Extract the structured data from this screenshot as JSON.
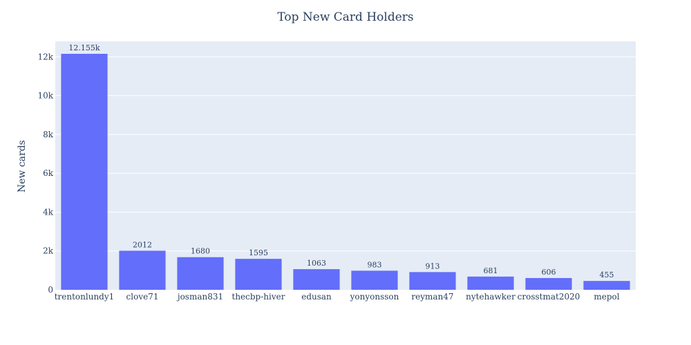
{
  "chart_data": {
    "type": "bar",
    "title": "Top New Card Holders",
    "xlabel": "",
    "ylabel": "New cards",
    "categories": [
      "trentonlundy1",
      "clove71",
      "josman831",
      "thecbp-hiver",
      "edusan",
      "yonyonsson",
      "reyman47",
      "nytehawker",
      "crosstmat2020",
      "mepol"
    ],
    "values": [
      12155,
      2012,
      1680,
      1595,
      1063,
      983,
      913,
      681,
      606,
      455
    ],
    "data_labels": [
      "12.155k",
      "2012",
      "1680",
      "1595",
      "1063",
      "983",
      "913",
      "681",
      "606",
      "455"
    ],
    "ylim": [
      0,
      12795
    ],
    "yticks": [
      0,
      2000,
      4000,
      6000,
      8000,
      10000,
      12000
    ],
    "ytick_labels": [
      "0",
      "2k",
      "4k",
      "6k",
      "8k",
      "10k",
      "12k"
    ],
    "grid": true,
    "colors": {
      "bar": "#636efa",
      "plot_bg": "#e5ecf6",
      "grid": "#ffffff",
      "text": "#2a3f5f"
    }
  }
}
